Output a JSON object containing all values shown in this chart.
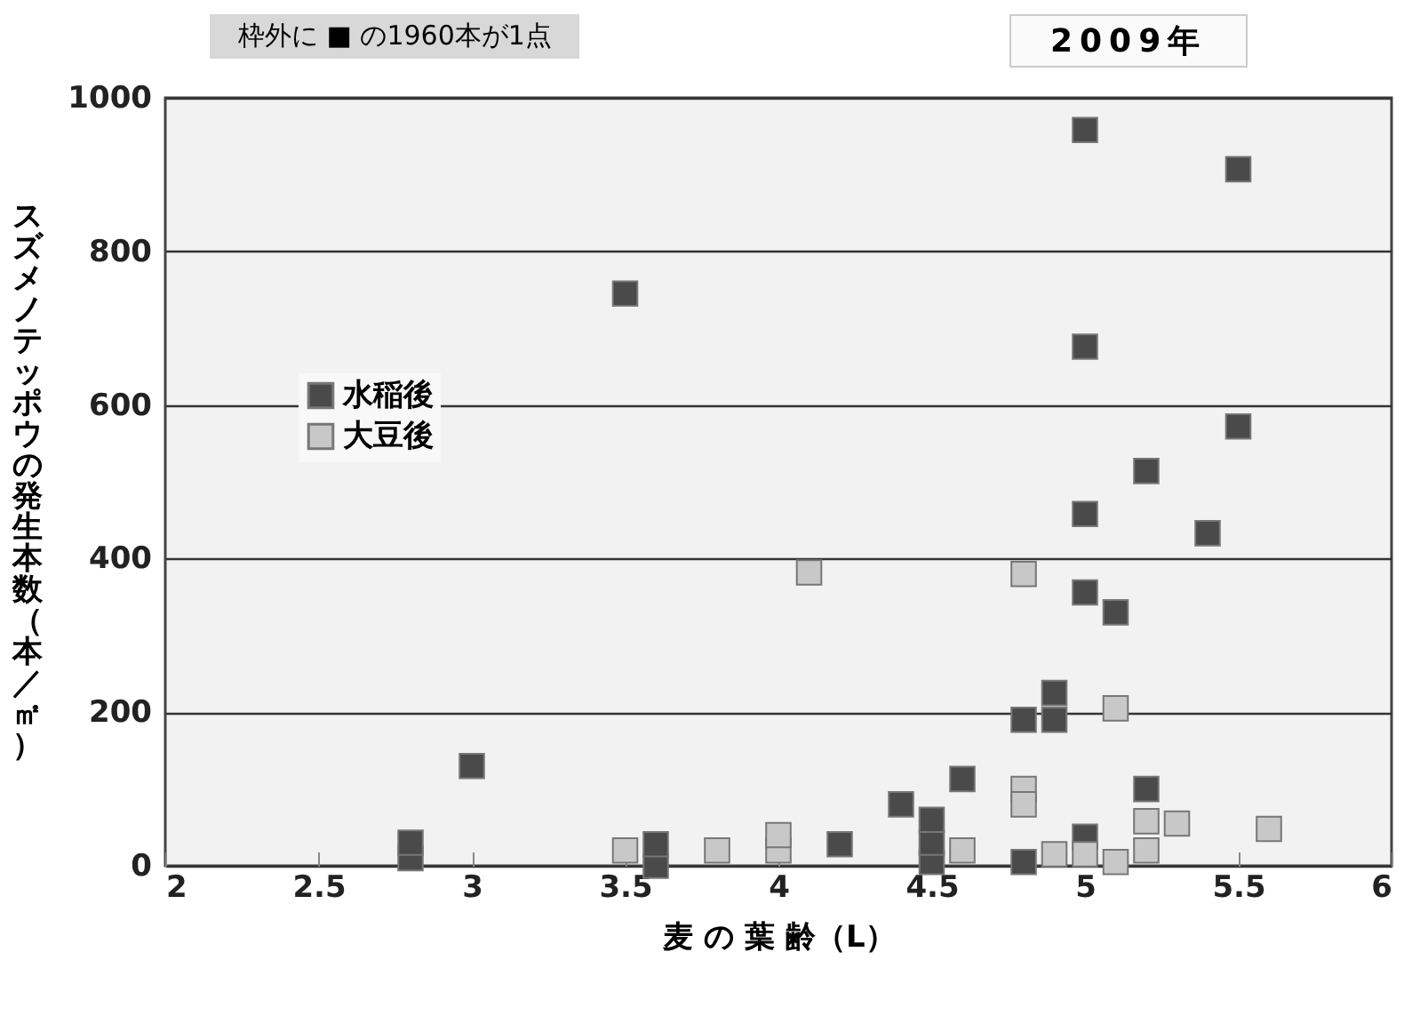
{
  "chart_data": {
    "type": "scatter",
    "title": "2009年",
    "xlabel": "麦 の 葉 齢（L）",
    "ylabel": "スズメノテッポウの発生本数（本／㎡）",
    "annotations": [
      "枠外に ■ の1960本が1点"
    ],
    "xlim": [
      2,
      6
    ],
    "xticks": [
      2,
      2.5,
      3,
      3.5,
      4,
      4.5,
      5,
      5.5,
      6
    ],
    "ylim": [
      0,
      1000
    ],
    "yticks": [
      0,
      200,
      400,
      600,
      800,
      1000
    ],
    "grid": "y",
    "legend": "left",
    "marker": "square",
    "series": [
      {
        "name": "水稲後",
        "color": "#4a4a4a",
        "x": [
          2.8,
          2.8,
          3.0,
          3.5,
          3.6,
          3.6,
          4.2,
          4.4,
          4.5,
          4.5,
          4.5,
          4.6,
          4.8,
          4.8,
          4.9,
          4.9,
          5.0,
          5.0,
          5.0,
          5.0,
          5.0,
          5.1,
          5.2,
          5.2,
          5.4,
          5.5,
          5.5
        ],
        "values": [
          10,
          30,
          130,
          745,
          0,
          28,
          28,
          80,
          5,
          30,
          60,
          113,
          5,
          190,
          190,
          225,
          958,
          676,
          458,
          356,
          38,
          330,
          514,
          100,
          433,
          907,
          572
        ]
      },
      {
        "name": "大豆後",
        "color": "#c8c8c8",
        "x": [
          3.5,
          3.8,
          4.0,
          4.0,
          4.1,
          4.6,
          4.8,
          4.8,
          4.8,
          4.9,
          5.0,
          5.1,
          5.1,
          5.2,
          5.2,
          5.3,
          5.6
        ],
        "values": [
          20,
          20,
          20,
          40,
          382,
          20,
          380,
          100,
          80,
          15,
          15,
          5,
          205,
          58,
          20,
          55,
          48
        ]
      }
    ]
  }
}
